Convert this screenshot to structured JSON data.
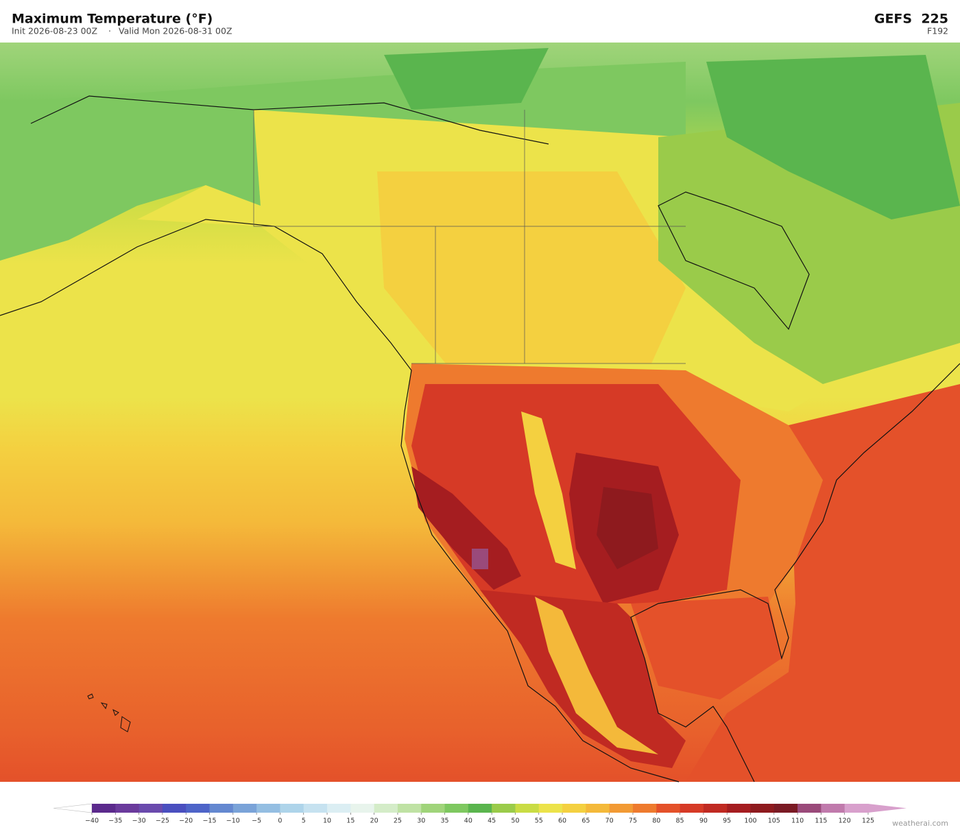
{
  "header": {
    "title": "Maximum Temperature  (°F)",
    "init": "Init 2026-08-23 00Z",
    "separator": "·",
    "valid": "Valid Mon 2026-08-31 00Z",
    "model": "GEFS  225",
    "forecast_hour": "F192"
  },
  "colorbar": {
    "ticks": [
      {
        "value": -40,
        "label": "−40"
      },
      {
        "value": -35,
        "label": "−35"
      },
      {
        "value": -30,
        "label": "−30"
      },
      {
        "value": -25,
        "label": "−25"
      },
      {
        "value": -20,
        "label": "−20"
      },
      {
        "value": -15,
        "label": "−15"
      },
      {
        "value": -10,
        "label": "−10"
      },
      {
        "value": -5,
        "label": "−5"
      },
      0,
      5,
      10,
      15,
      20,
      25,
      30,
      35,
      40,
      45,
      50,
      55,
      60,
      65,
      70,
      75,
      80,
      85,
      90,
      95,
      100,
      105,
      110,
      115,
      120,
      125
    ],
    "colors": [
      "#5b2a8c",
      "#6a3a9c",
      "#6a4aad",
      "#4a4fbf",
      "#4e64c8",
      "#6488d0",
      "#7aa3d8",
      "#94bee2",
      "#aed4ea",
      "#c6e2f0",
      "#dbeef3",
      "#e8f4ec",
      "#d4ecc8",
      "#bfe2a4",
      "#a0d47a",
      "#7ec860",
      "#5ab54e",
      "#9acb4a",
      "#c9dc44",
      "#ece34a",
      "#f4d040",
      "#f4b93a",
      "#f29a34",
      "#ee7a2e",
      "#e4512a",
      "#d63a26",
      "#c02a22",
      "#a51d20",
      "#8e1a1e",
      "#7a1a24",
      "#9a4a7a",
      "#c07aac",
      "#d8a0cc"
    ],
    "under_color": "#ffffff",
    "over_color": "#d8a0cc"
  },
  "watermark": "weatherai.com"
}
